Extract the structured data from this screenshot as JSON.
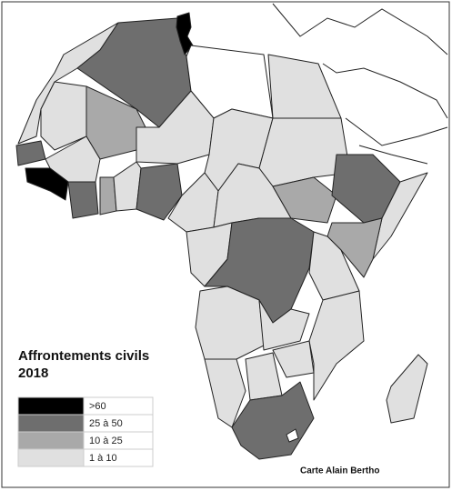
{
  "title": {
    "line1": "Affrontements civils",
    "line2": "2018"
  },
  "legend": [
    {
      "label": ">60",
      "color": "#000000"
    },
    {
      "label": "25 à 50",
      "color": "#6e6e6e"
    },
    {
      "label": "10 à 25",
      "color": "#a9a9a9"
    },
    {
      "label": "1 à 10",
      "color": "#e0e0e0"
    }
  ],
  "credit": "Carte Alain Bertho"
}
